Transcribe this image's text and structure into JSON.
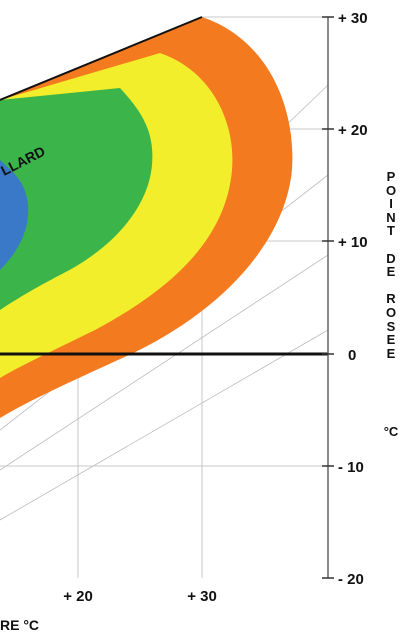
{
  "chart_data": {
    "type": "area",
    "y_axis": {
      "label": "POINT DE ROSEE",
      "unit": "°C",
      "ticks": [
        "+ 30",
        "+ 20",
        "+ 10",
        "0",
        "- 10",
        "- 20"
      ],
      "tick_values": [
        30,
        20,
        10,
        0,
        -10,
        -20
      ],
      "range": [
        -20,
        30
      ],
      "side": "right"
    },
    "x_axis": {
      "label_fragment": "RE °C",
      "ticks": [
        "+ 20",
        "+ 30"
      ],
      "tick_values": [
        20,
        30
      ]
    },
    "curve_label_fragment": "LLARD",
    "zones": [
      {
        "color": "#f47a20"
      },
      {
        "color": "#f2ee2b"
      },
      {
        "color": "#3bb54a"
      },
      {
        "color": "#3a78c8"
      }
    ],
    "grid": true,
    "reference_line_value": 0
  }
}
